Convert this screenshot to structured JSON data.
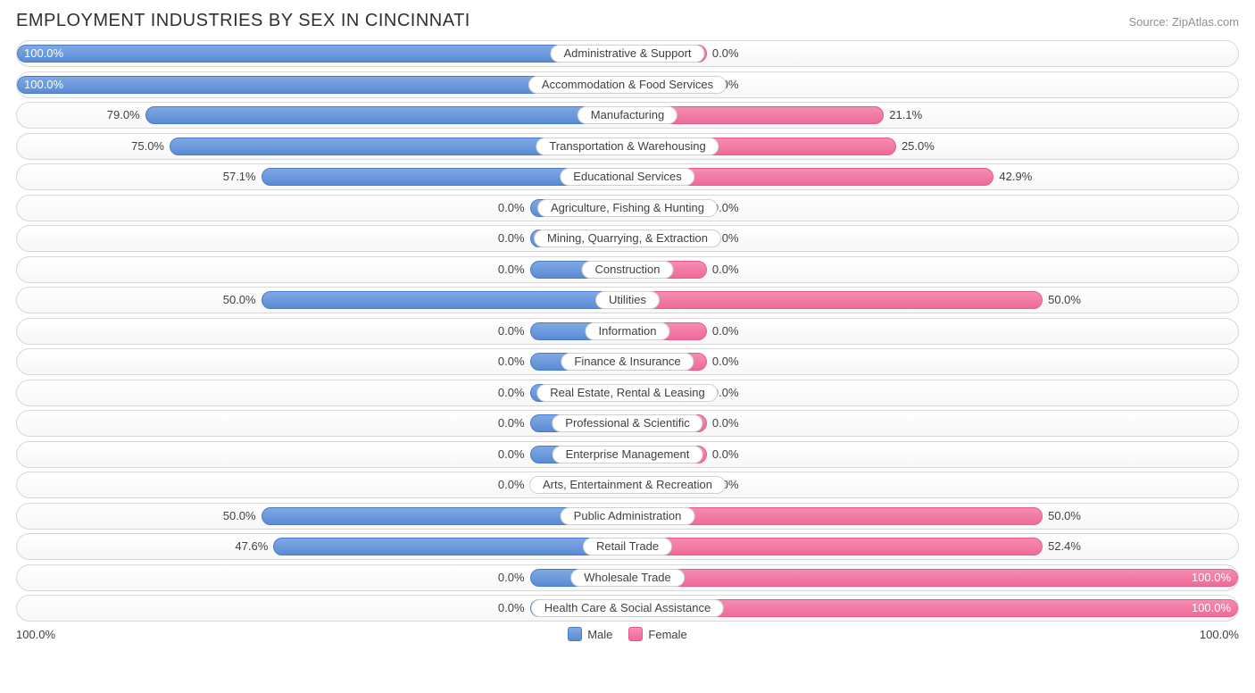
{
  "title": "EMPLOYMENT INDUSTRIES BY SEX IN CINCINNATI",
  "source": "Source: ZipAtlas.com",
  "axis": {
    "left_label": "100.0%",
    "right_label": "100.0%"
  },
  "legend": {
    "male": {
      "label": "Male",
      "fill": "#6e9ede",
      "border": "#4a7bc8"
    },
    "female": {
      "label": "Female",
      "fill": "#f17ba6",
      "border": "#e65a8f"
    }
  },
  "colors": {
    "male_fill_top": "#7fa9e4",
    "male_fill_bot": "#5a8bd4",
    "male_border": "#4a7bc8",
    "female_fill_top": "#f58db2",
    "female_fill_bot": "#ee6a99",
    "female_border": "#e65a8f",
    "row_border": "#d8d8d8",
    "text": "#404040"
  },
  "default_bar_pct": 8,
  "rows": [
    {
      "category": "Administrative & Support",
      "male": 100.0,
      "male_bar": 100,
      "female": 0.0,
      "female_bar": 13
    },
    {
      "category": "Accommodation & Food Services",
      "male": 100.0,
      "male_bar": 100,
      "female": 0.0,
      "female_bar": 13
    },
    {
      "category": "Manufacturing",
      "male": 79.0,
      "male_bar": 79,
      "female": 21.1,
      "female_bar": 42
    },
    {
      "category": "Transportation & Warehousing",
      "male": 75.0,
      "male_bar": 75,
      "female": 25.0,
      "female_bar": 44
    },
    {
      "category": "Educational Services",
      "male": 57.1,
      "male_bar": 60,
      "female": 42.9,
      "female_bar": 60
    },
    {
      "category": "Agriculture, Fishing & Hunting",
      "male": 0.0,
      "male_bar": 16,
      "female": 0.0,
      "female_bar": 13
    },
    {
      "category": "Mining, Quarrying, & Extraction",
      "male": 0.0,
      "male_bar": 16,
      "female": 0.0,
      "female_bar": 13
    },
    {
      "category": "Construction",
      "male": 0.0,
      "male_bar": 16,
      "female": 0.0,
      "female_bar": 13
    },
    {
      "category": "Utilities",
      "male": 50.0,
      "male_bar": 60,
      "female": 50.0,
      "female_bar": 68
    },
    {
      "category": "Information",
      "male": 0.0,
      "male_bar": 16,
      "female": 0.0,
      "female_bar": 13
    },
    {
      "category": "Finance & Insurance",
      "male": 0.0,
      "male_bar": 16,
      "female": 0.0,
      "female_bar": 13
    },
    {
      "category": "Real Estate, Rental & Leasing",
      "male": 0.0,
      "male_bar": 16,
      "female": 0.0,
      "female_bar": 13
    },
    {
      "category": "Professional & Scientific",
      "male": 0.0,
      "male_bar": 16,
      "female": 0.0,
      "female_bar": 13
    },
    {
      "category": "Enterprise Management",
      "male": 0.0,
      "male_bar": 16,
      "female": 0.0,
      "female_bar": 13
    },
    {
      "category": "Arts, Entertainment & Recreation",
      "male": 0.0,
      "male_bar": 16,
      "female": 0.0,
      "female_bar": 13
    },
    {
      "category": "Public Administration",
      "male": 50.0,
      "male_bar": 60,
      "female": 50.0,
      "female_bar": 68
    },
    {
      "category": "Retail Trade",
      "male": 47.6,
      "male_bar": 58,
      "female": 52.4,
      "female_bar": 68
    },
    {
      "category": "Wholesale Trade",
      "male": 0.0,
      "male_bar": 16,
      "female": 100.0,
      "female_bar": 100
    },
    {
      "category": "Health Care & Social Assistance",
      "male": 0.0,
      "male_bar": 16,
      "female": 100.0,
      "female_bar": 100
    }
  ]
}
